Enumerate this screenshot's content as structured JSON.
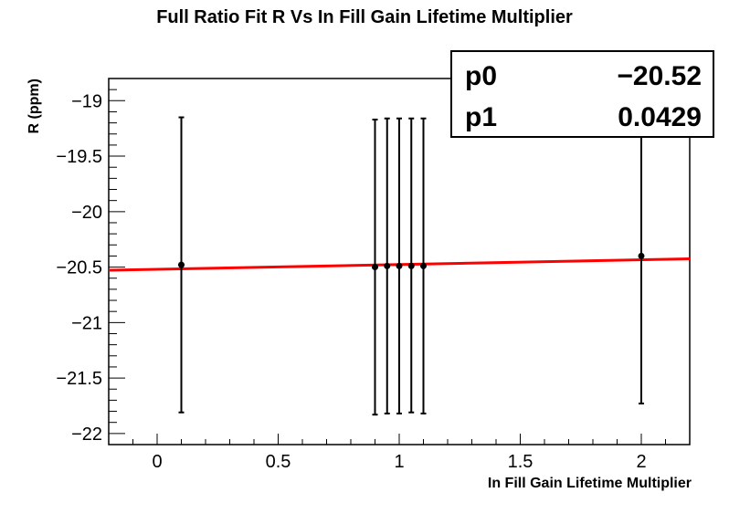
{
  "chart_data": {
    "type": "scatter",
    "title": "Full Ratio Fit R Vs In Fill Gain Lifetime Multiplier",
    "xlabel": "In Fill Gain Lifetime Multiplier",
    "ylabel": "R (ppm)",
    "xlim": [
      -0.2,
      2.2
    ],
    "ylim": [
      -22.1,
      -18.8
    ],
    "x_ticks": [
      {
        "value": 0,
        "label": "0"
      },
      {
        "value": 0.5,
        "label": "0.5"
      },
      {
        "value": 1,
        "label": "1"
      },
      {
        "value": 1.5,
        "label": "1.5"
      },
      {
        "value": 2,
        "label": "2"
      }
    ],
    "y_ticks": [
      {
        "value": -19,
        "label": "−19"
      },
      {
        "value": -19.5,
        "label": "−19.5"
      },
      {
        "value": -20,
        "label": "−20"
      },
      {
        "value": -20.5,
        "label": "−20.5"
      },
      {
        "value": -21,
        "label": "−21"
      },
      {
        "value": -21.5,
        "label": "−21.5"
      },
      {
        "value": -22,
        "label": "−22"
      }
    ],
    "points": [
      {
        "x": 0.1,
        "y": -20.48,
        "y_low": -21.81,
        "y_high": -19.15
      },
      {
        "x": 0.9,
        "y": -20.5,
        "y_low": -21.83,
        "y_high": -19.17
      },
      {
        "x": 0.95,
        "y": -20.49,
        "y_low": -21.82,
        "y_high": -19.16
      },
      {
        "x": 1.0,
        "y": -20.49,
        "y_low": -21.82,
        "y_high": -19.16
      },
      {
        "x": 1.05,
        "y": -20.49,
        "y_low": -21.81,
        "y_high": -19.16
      },
      {
        "x": 1.1,
        "y": -20.49,
        "y_low": -21.82,
        "y_high": -19.16
      },
      {
        "x": 2.0,
        "y": -20.4,
        "y_low": -21.73,
        "y_high": -19.07
      }
    ],
    "fit": {
      "p0": -20.52,
      "p1": 0.0429,
      "color": "#ff0000"
    },
    "stats_box": {
      "placement": "top-right",
      "rows": [
        {
          "name": "p0",
          "value": "−20.52"
        },
        {
          "name": "p1",
          "value": "0.0429"
        }
      ]
    },
    "grid": false,
    "colors": {
      "points": "#000000",
      "fit": "#ff0000",
      "frame": "#000000"
    }
  }
}
